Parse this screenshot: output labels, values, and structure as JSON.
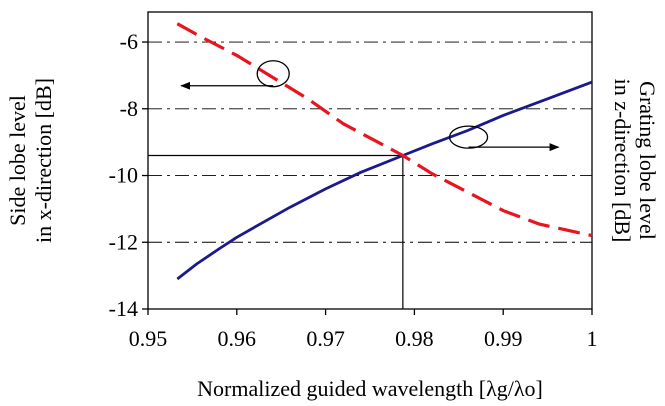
{
  "chart_data": {
    "type": "line",
    "title": "",
    "xlabel": "Normalized guided wavelength [λg/λo]",
    "ylabel_left": [
      "Side lobe level",
      "in x-direction [dB]"
    ],
    "ylabel_right": [
      "Grating lobe level",
      "in z-direction [dB]"
    ],
    "xlim": [
      0.95,
      1.0
    ],
    "ylim": [
      -14,
      -5.1
    ],
    "x_ticks": [
      0.95,
      0.96,
      0.97,
      0.98,
      0.99,
      1.0
    ],
    "x_tick_labels": [
      "0.95",
      "0.96",
      "0.97",
      "0.98",
      "0.99",
      "1"
    ],
    "y_ticks": [
      -14,
      -12,
      -10,
      -8,
      -6
    ],
    "y_tick_labels": [
      "-14",
      "-12",
      "-10",
      "-8",
      "-6"
    ],
    "grid": "horizontal dashed",
    "series": [
      {
        "style": "solid",
        "color": "#1a1a8c",
        "axis": "left",
        "x": [
          0.9533,
          0.9555,
          0.958,
          0.96,
          0.963,
          0.966,
          0.97,
          0.974,
          0.9787,
          0.982,
          0.986,
          0.99,
          0.995,
          1.0
        ],
        "y": [
          -13.1,
          -12.65,
          -12.2,
          -11.85,
          -11.4,
          -10.95,
          -10.4,
          -9.9,
          -9.4,
          -9.05,
          -8.65,
          -8.2,
          -7.7,
          -7.2
        ]
      },
      {
        "style": "dashed",
        "color": "#e8141e",
        "axis": "right",
        "x": [
          0.9533,
          0.956,
          0.96,
          0.964,
          0.968,
          0.972,
          0.9787,
          0.982,
          0.986,
          0.99,
          0.994,
          1.0
        ],
        "y": [
          -5.45,
          -5.85,
          -6.4,
          -7.05,
          -7.7,
          -8.45,
          -9.4,
          -9.95,
          -10.5,
          -11.05,
          -11.45,
          -11.8
        ]
      }
    ],
    "marker": {
      "x": 0.9787,
      "y": -9.4
    },
    "annotations": [
      {
        "kind": "ellipse-arrow",
        "points_to": "left",
        "at": {
          "x": 0.9641,
          "y": -6.95
        }
      },
      {
        "kind": "ellipse-arrow",
        "points_to": "right",
        "at": {
          "x": 0.9861,
          "y": -8.85
        }
      }
    ]
  }
}
